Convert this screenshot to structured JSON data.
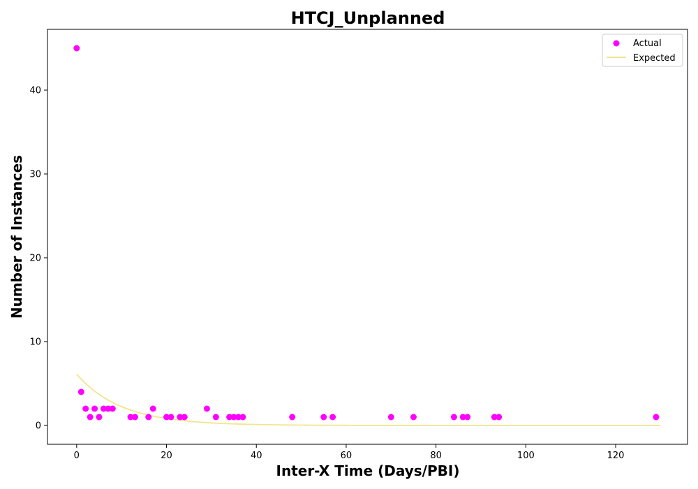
{
  "chart_data": {
    "type": "scatter",
    "title": "HTCJ_Unplanned",
    "xlabel": "Inter-X Time (Days/PBI)",
    "ylabel": "Number of Instances",
    "xlim": [
      -6.5,
      136
    ],
    "ylim": [
      -2.25,
      47.25
    ],
    "xticks": [
      0,
      20,
      40,
      60,
      80,
      100,
      120
    ],
    "yticks": [
      0,
      10,
      20,
      30,
      40
    ],
    "grid": false,
    "legend_position": "top-right",
    "series": [
      {
        "name": "Actual",
        "kind": "scatter",
        "color": "#ff00ff",
        "points": [
          [
            0,
            45
          ],
          [
            1,
            4
          ],
          [
            2,
            2
          ],
          [
            3,
            1
          ],
          [
            4,
            2
          ],
          [
            5,
            1
          ],
          [
            6,
            2
          ],
          [
            7,
            2
          ],
          [
            8,
            2
          ],
          [
            12,
            1
          ],
          [
            13,
            1
          ],
          [
            16,
            1
          ],
          [
            17,
            2
          ],
          [
            20,
            1
          ],
          [
            21,
            1
          ],
          [
            23,
            1
          ],
          [
            24,
            1
          ],
          [
            29,
            2
          ],
          [
            31,
            1
          ],
          [
            34,
            1
          ],
          [
            35,
            1
          ],
          [
            36,
            1
          ],
          [
            37,
            1
          ],
          [
            48,
            1
          ],
          [
            55,
            1
          ],
          [
            57,
            1
          ],
          [
            70,
            1
          ],
          [
            75,
            1
          ],
          [
            84,
            1
          ],
          [
            86,
            1
          ],
          [
            87,
            1
          ],
          [
            93,
            1
          ],
          [
            94,
            1
          ],
          [
            129,
            1
          ]
        ]
      },
      {
        "name": "Expected",
        "kind": "line",
        "color": "#f0e68c",
        "function": "exponential",
        "a": 6.1,
        "rate": 0.1,
        "x_range": [
          0,
          130
        ]
      }
    ]
  }
}
